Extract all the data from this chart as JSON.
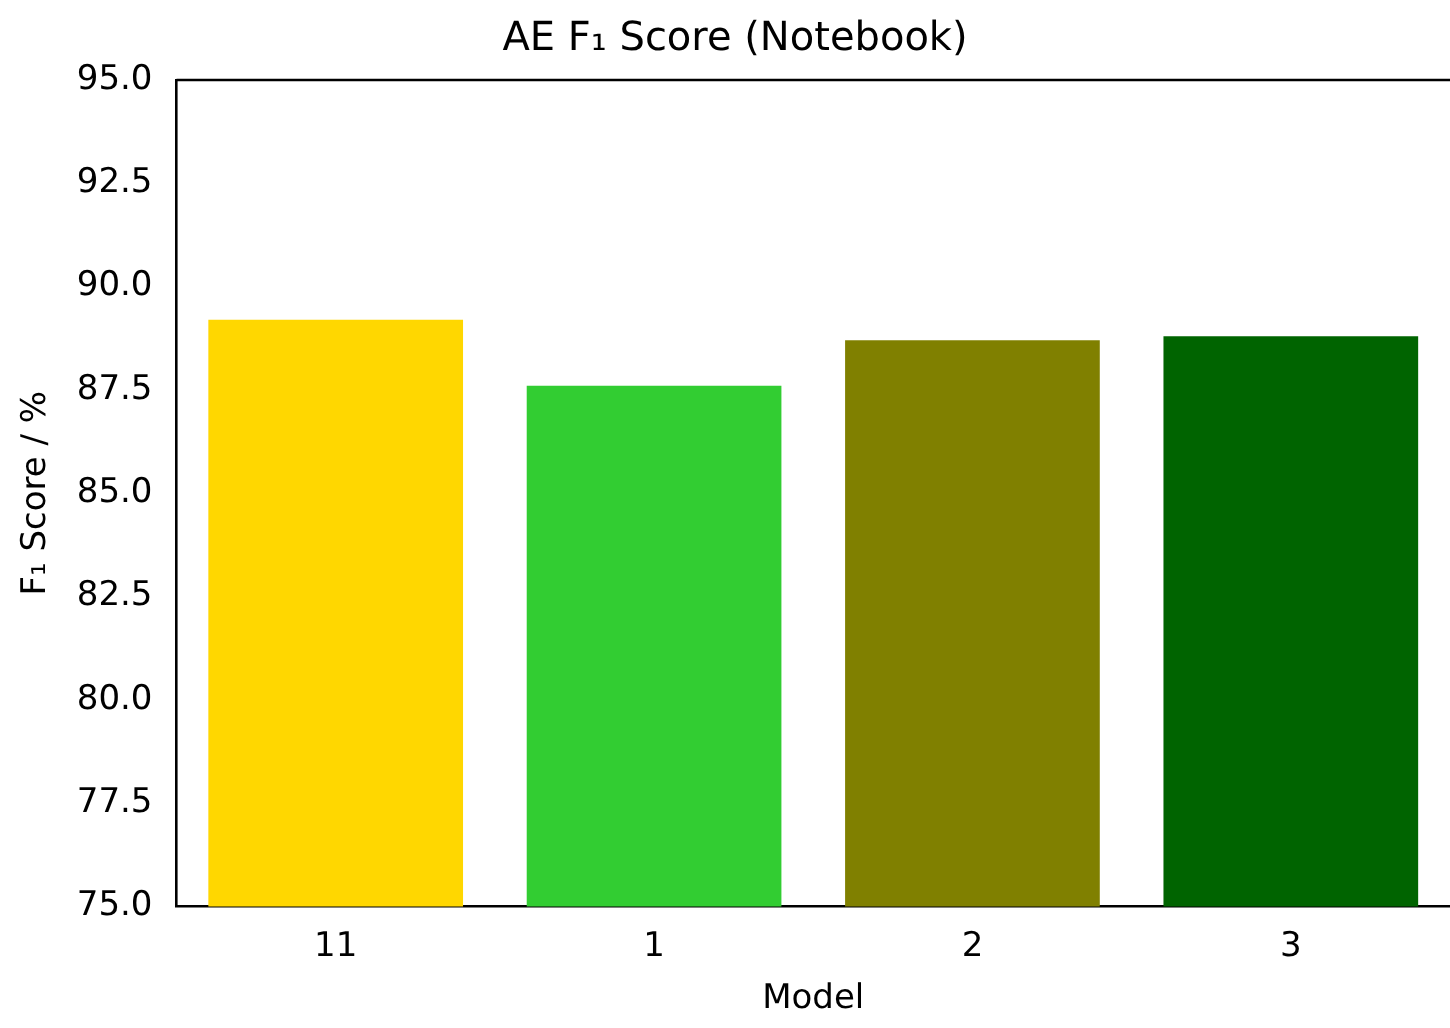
{
  "chart_data": {
    "type": "bar",
    "title": "AE F₁ Score (Notebook)",
    "xlabel": "Model",
    "ylabel": "F₁ Score / %",
    "categories": [
      "11",
      "1",
      "2",
      "3"
    ],
    "values": [
      89.2,
      87.6,
      88.7,
      88.8
    ],
    "colors": [
      "#ffd700",
      "#32cd32",
      "#808000",
      "#006400"
    ],
    "ylim": [
      75,
      95
    ],
    "yticks": [
      {
        "value": 75,
        "label": "75.0"
      },
      {
        "value": 77.5,
        "label": "77.5"
      },
      {
        "value": 80,
        "label": "80.0"
      },
      {
        "value": 82.5,
        "label": "82.5"
      },
      {
        "value": 85,
        "label": "85.0"
      },
      {
        "value": 87.5,
        "label": "87.5"
      },
      {
        "value": 90,
        "label": "90.0"
      },
      {
        "value": 92.5,
        "label": "92.5"
      },
      {
        "value": 95,
        "label": "95.0"
      }
    ],
    "grid": false,
    "legend": false
  }
}
